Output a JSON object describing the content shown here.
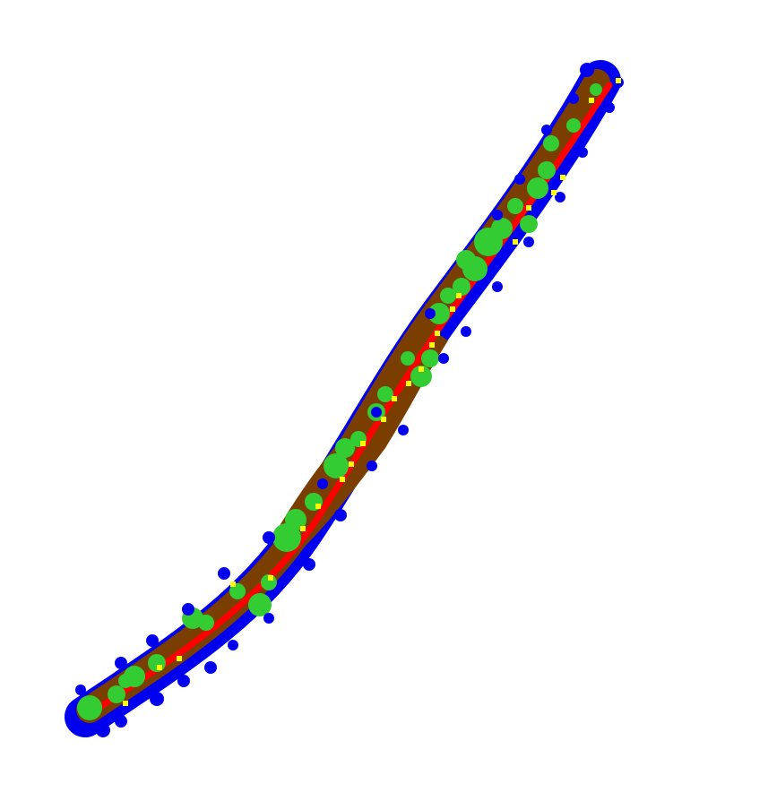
{
  "map": {
    "type": "semantic-segmentation-map",
    "background_color": "#ffffff",
    "classes": [
      {
        "name": "ground",
        "color": "#7a3f00"
      },
      {
        "name": "vegetation",
        "color": "#33cc33"
      },
      {
        "name": "shadow-edge",
        "color": "#0000ee"
      },
      {
        "name": "road",
        "color": "#ff0000"
      },
      {
        "name": "marker",
        "color": "#ffff00"
      }
    ]
  }
}
